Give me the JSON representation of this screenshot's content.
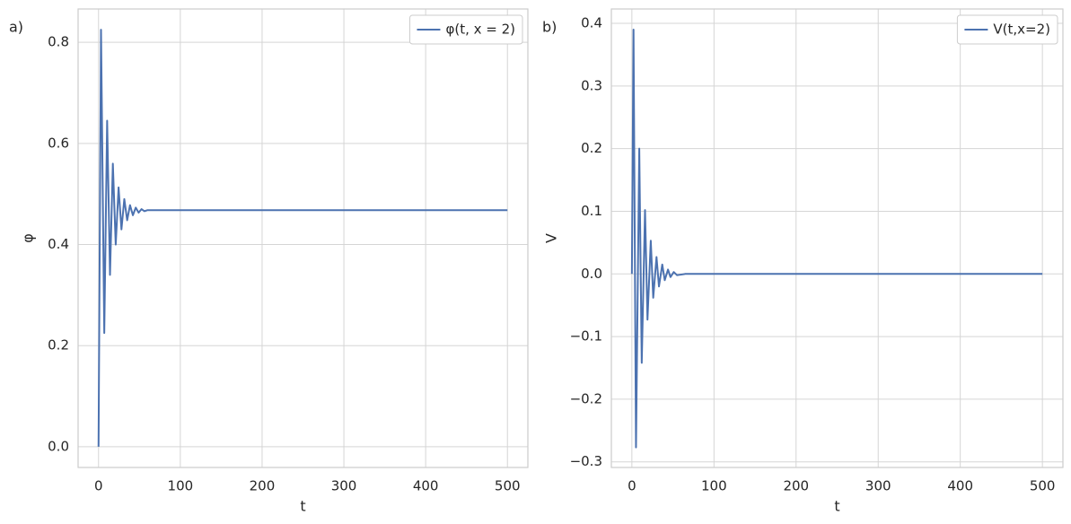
{
  "chart_data": [
    {
      "type": "line",
      "panel_label": "a)",
      "xlabel": "t",
      "ylabel": "φ",
      "x": [
        0,
        3,
        7,
        10.5,
        14,
        17.5,
        21,
        24.5,
        28,
        31.5,
        35,
        38.5,
        42,
        45.5,
        49,
        52.5,
        56,
        60,
        70,
        500
      ],
      "series": [
        {
          "name": "φ(t, x = 2)",
          "color": "#4c72b0",
          "values": [
            0,
            0.825,
            0.225,
            0.645,
            0.34,
            0.56,
            0.4,
            0.513,
            0.43,
            0.49,
            0.448,
            0.478,
            0.458,
            0.473,
            0.463,
            0.47,
            0.466,
            0.468,
            0.468,
            0.468
          ]
        }
      ],
      "xlim": [
        -25,
        525
      ],
      "xticks": [
        0,
        100,
        200,
        300,
        400,
        500
      ],
      "ylim": [
        -0.041,
        0.866
      ],
      "yticks": [
        {
          "value": 0,
          "label": "0.0"
        },
        0.2,
        0.4,
        0.6,
        0.8
      ],
      "grid": true,
      "legend": "upper right"
    },
    {
      "type": "line",
      "panel_label": "b)",
      "xlabel": "t",
      "ylabel": "V",
      "x": [
        0,
        2,
        5,
        9,
        12,
        16,
        19,
        23,
        26,
        30,
        33,
        37,
        40,
        44,
        47,
        51,
        55,
        65,
        500
      ],
      "series": [
        {
          "name": "V(t,x=2)",
          "color": "#4c72b0",
          "values": [
            0,
            0.39,
            -0.277,
            0.2,
            -0.142,
            0.102,
            -0.073,
            0.053,
            -0.038,
            0.027,
            -0.02,
            0.015,
            -0.01,
            0.007,
            -0.005,
            0.003,
            -0.002,
            0,
            0
          ]
        }
      ],
      "xlim": [
        -25,
        525
      ],
      "xticks": [
        0,
        100,
        200,
        300,
        400,
        500
      ],
      "ylim": [
        -0.309,
        0.423
      ],
      "yticks": [
        {
          "value": -0.3,
          "label": "−0.3"
        },
        {
          "value": -0.2,
          "label": "−0.2"
        },
        {
          "value": -0.1,
          "label": "−0.1"
        },
        {
          "value": 0,
          "label": "0.0"
        },
        0.1,
        0.2,
        0.3,
        0.4
      ],
      "grid": true,
      "legend": "upper right"
    }
  ]
}
